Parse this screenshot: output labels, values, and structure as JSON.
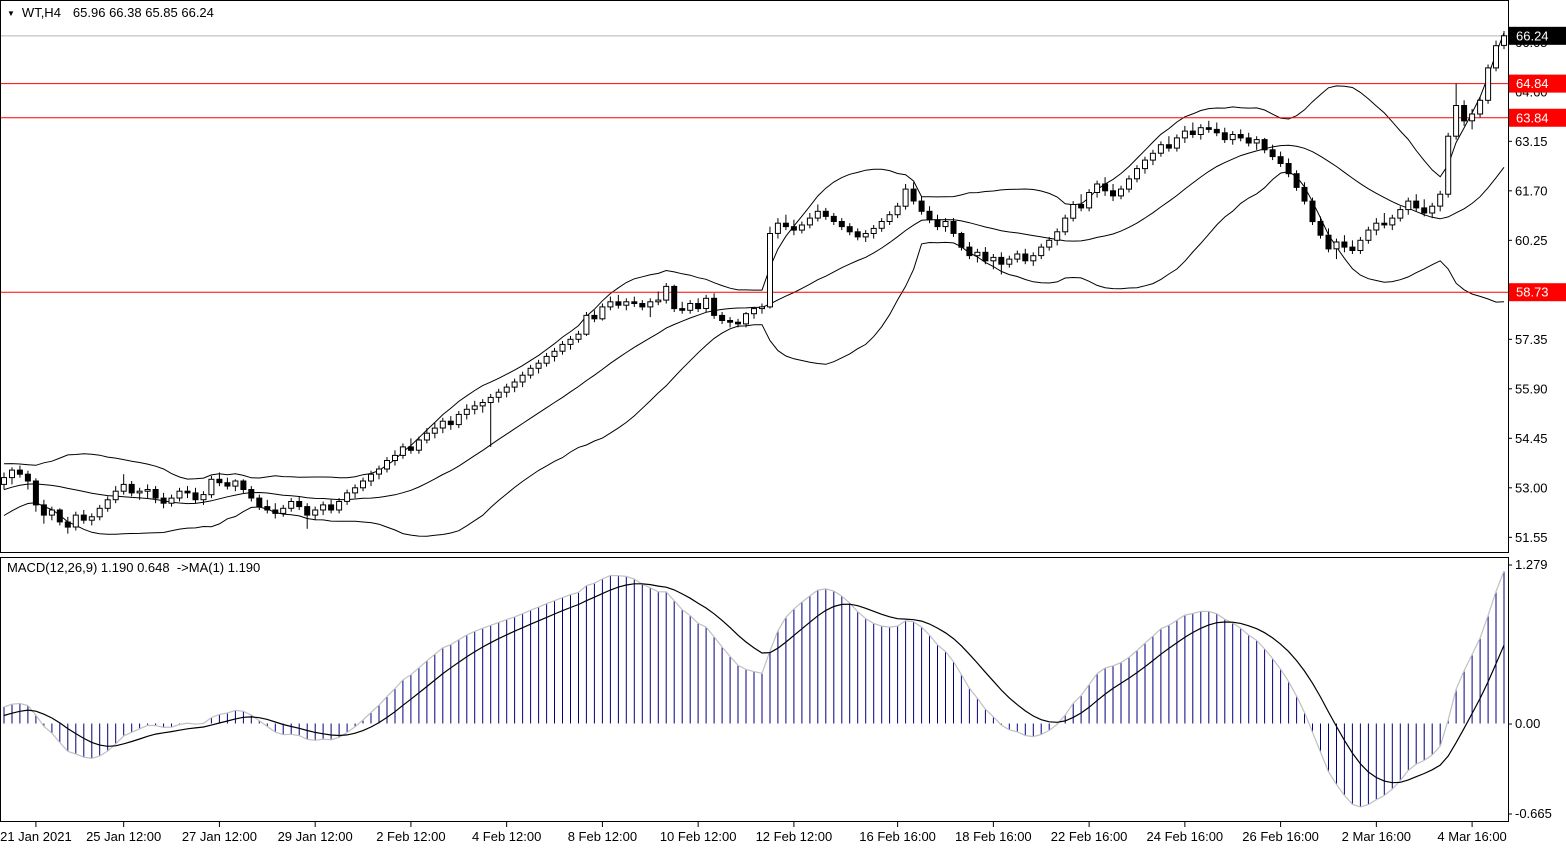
{
  "header": {
    "symbol": "WT,H4",
    "ohlc": "65.96 66.38 65.85 66.24"
  },
  "indicator_panel": {
    "label": "MACD(12,26,9) 1.190 0.648  ->MA(1) 1.190",
    "values": {
      "macd": "1.190",
      "signal": "0.648",
      "ma_label": "->MA(1)",
      "ma_value": "1.190"
    }
  },
  "chart_data": {
    "type": "candlestick",
    "symbol": "WT,H4",
    "timeframe": "H4",
    "title": "WT,H4 65.96 66.38 65.85 66.24",
    "current_bar": {
      "open": 65.96,
      "high": 66.38,
      "low": 65.85,
      "close": 66.24
    },
    "price_axis": {
      "min": 51.12,
      "max": 67.26,
      "ticks": [
        "66.05",
        "64.60",
        "63.15",
        "61.70",
        "60.25",
        "58.80",
        "57.35",
        "55.90",
        "54.45",
        "53.00",
        "51.55"
      ]
    },
    "time_axis": {
      "labels": [
        "21 Jan 2021",
        "25 Jan 12:00",
        "27 Jan 12:00",
        "29 Jan 12:00",
        "2 Feb 12:00",
        "4 Feb 12:00",
        "8 Feb 12:00",
        "10 Feb 12:00",
        "12 Feb 12:00",
        "16 Feb 16:00",
        "18 Feb 16:00",
        "22 Feb 16:00",
        "24 Feb 16:00",
        "26 Feb 16:00",
        "2 Mar 16:00",
        "4 Mar 16:00"
      ],
      "bar_index": [
        4,
        15,
        27,
        39,
        51,
        63,
        75,
        87,
        99,
        112,
        124,
        136,
        148,
        160,
        172,
        184
      ]
    },
    "horizontal_lines": [
      {
        "price": 64.84,
        "label": "64.84",
        "color": "#ff0000"
      },
      {
        "price": 63.84,
        "label": "63.84",
        "color": "#ff0000"
      },
      {
        "price": 58.73,
        "label": "58.73",
        "color": "#ff0000"
      }
    ],
    "current_price": {
      "value": 66.24,
      "label": "66.24",
      "line_color": "#b4b4b4",
      "badge_bg": "#000000"
    },
    "macd_axis_labels": {
      "max": "1.279",
      "zero": "0.00",
      "min": "-0.665"
    },
    "indicators": {
      "bollinger": {
        "period": 20,
        "deviation": 2
      },
      "macd": {
        "fast": 12,
        "slow": 26,
        "signal": 9
      }
    },
    "colors": {
      "bull": "#ffffff",
      "bear": "#000000",
      "outline": "#000000",
      "band": "#000000",
      "histogram": "#000080",
      "macd_main": "#c0c0c0",
      "macd_signal": "#000000",
      "level_red": "#ff0000",
      "frame": "#000000"
    },
    "warmup_closes": [
      53.8,
      53.9,
      54.0,
      54.1,
      54.0,
      53.9,
      53.8,
      53.6,
      53.4,
      53.2,
      53.0,
      52.8,
      52.6,
      52.4,
      52.2,
      52.0,
      51.9,
      52.0,
      52.1,
      52.3,
      52.2,
      52.1,
      52.3,
      52.5,
      52.4,
      52.6,
      52.8,
      52.7,
      52.9,
      53.1,
      53.0,
      53.2,
      53.1,
      53.3,
      53.2,
      53.4,
      53.3,
      53.2,
      53.3,
      53.25
    ],
    "candles": [
      [
        53.1,
        53.45,
        52.95,
        53.3
      ],
      [
        53.3,
        53.6,
        53.1,
        53.52
      ],
      [
        53.52,
        53.65,
        53.3,
        53.4
      ],
      [
        53.4,
        53.5,
        52.95,
        53.2
      ],
      [
        53.2,
        53.28,
        52.3,
        52.5
      ],
      [
        52.5,
        52.65,
        51.95,
        52.2
      ],
      [
        52.2,
        52.45,
        52.05,
        52.35
      ],
      [
        52.35,
        52.4,
        51.9,
        52.0
      ],
      [
        52.0,
        52.15,
        51.66,
        51.85
      ],
      [
        51.85,
        52.3,
        51.75,
        52.2
      ],
      [
        52.2,
        52.35,
        51.95,
        52.05
      ],
      [
        52.05,
        52.25,
        51.9,
        52.15
      ],
      [
        52.15,
        52.5,
        52.05,
        52.4
      ],
      [
        52.4,
        52.75,
        52.3,
        52.65
      ],
      [
        52.65,
        53.05,
        52.55,
        52.9
      ],
      [
        52.9,
        53.4,
        52.8,
        53.1
      ],
      [
        53.1,
        53.2,
        52.75,
        52.85
      ],
      [
        52.85,
        53.0,
        52.65,
        52.9
      ],
      [
        52.9,
        53.1,
        52.7,
        52.95
      ],
      [
        52.95,
        53.05,
        52.55,
        52.7
      ],
      [
        52.7,
        52.85,
        52.4,
        52.55
      ],
      [
        52.55,
        52.8,
        52.45,
        52.7
      ],
      [
        52.7,
        53.0,
        52.6,
        52.9
      ],
      [
        52.9,
        53.05,
        52.7,
        52.85
      ],
      [
        52.85,
        53.0,
        52.55,
        52.65
      ],
      [
        52.65,
        52.9,
        52.5,
        52.8
      ],
      [
        52.8,
        53.35,
        52.7,
        53.25
      ],
      [
        53.25,
        53.45,
        53.05,
        53.15
      ],
      [
        53.15,
        53.3,
        52.95,
        53.05
      ],
      [
        53.05,
        53.25,
        52.9,
        53.2
      ],
      [
        53.2,
        53.25,
        52.85,
        52.95
      ],
      [
        52.95,
        53.05,
        52.6,
        52.7
      ],
      [
        52.7,
        52.8,
        52.35,
        52.45
      ],
      [
        52.45,
        52.65,
        52.25,
        52.35
      ],
      [
        52.35,
        52.55,
        52.1,
        52.25
      ],
      [
        52.25,
        52.5,
        52.15,
        52.4
      ],
      [
        52.4,
        52.7,
        52.3,
        52.6
      ],
      [
        52.6,
        52.75,
        52.35,
        52.45
      ],
      [
        52.45,
        52.55,
        51.8,
        52.2
      ],
      [
        52.2,
        52.45,
        52.05,
        52.35
      ],
      [
        52.35,
        52.6,
        52.2,
        52.5
      ],
      [
        52.5,
        52.65,
        52.25,
        52.35
      ],
      [
        52.35,
        52.7,
        52.25,
        52.6
      ],
      [
        52.6,
        52.95,
        52.5,
        52.85
      ],
      [
        52.85,
        53.1,
        52.7,
        53.0
      ],
      [
        53.0,
        53.3,
        52.9,
        53.2
      ],
      [
        53.2,
        53.5,
        53.05,
        53.4
      ],
      [
        53.4,
        53.65,
        53.25,
        53.55
      ],
      [
        53.55,
        53.9,
        53.45,
        53.8
      ],
      [
        53.8,
        54.1,
        53.65,
        53.95
      ],
      [
        53.95,
        54.3,
        53.85,
        54.2
      ],
      [
        54.2,
        54.45,
        54.0,
        54.1
      ],
      [
        54.1,
        54.5,
        54.0,
        54.4
      ],
      [
        54.4,
        54.75,
        54.3,
        54.6
      ],
      [
        54.6,
        54.9,
        54.45,
        54.75
      ],
      [
        54.75,
        55.05,
        54.6,
        54.95
      ],
      [
        54.95,
        55.1,
        54.7,
        54.85
      ],
      [
        54.85,
        55.25,
        54.75,
        55.15
      ],
      [
        55.15,
        55.45,
        55.0,
        55.3
      ],
      [
        55.3,
        55.55,
        55.15,
        55.4
      ],
      [
        55.4,
        55.6,
        55.2,
        55.5
      ],
      [
        55.5,
        55.75,
        54.2,
        55.65
      ],
      [
        55.65,
        55.9,
        55.5,
        55.8
      ],
      [
        55.8,
        56.05,
        55.65,
        55.95
      ],
      [
        55.95,
        56.2,
        55.8,
        56.1
      ],
      [
        56.1,
        56.4,
        55.95,
        56.3
      ],
      [
        56.3,
        56.6,
        56.2,
        56.5
      ],
      [
        56.5,
        56.75,
        56.35,
        56.65
      ],
      [
        56.65,
        56.95,
        56.55,
        56.85
      ],
      [
        56.85,
        57.1,
        56.7,
        57.0
      ],
      [
        57.0,
        57.3,
        56.9,
        57.2
      ],
      [
        57.2,
        57.45,
        57.05,
        57.35
      ],
      [
        57.35,
        57.6,
        57.25,
        57.5
      ],
      [
        57.5,
        58.15,
        57.45,
        58.05
      ],
      [
        58.05,
        58.2,
        57.85,
        57.95
      ],
      [
        57.95,
        58.4,
        57.9,
        58.3
      ],
      [
        58.3,
        58.6,
        58.2,
        58.45
      ],
      [
        58.45,
        58.65,
        58.25,
        58.35
      ],
      [
        58.35,
        58.55,
        58.2,
        58.45
      ],
      [
        58.45,
        58.6,
        58.3,
        58.4
      ],
      [
        58.4,
        58.5,
        58.2,
        58.3
      ],
      [
        58.3,
        58.55,
        58.0,
        58.45
      ],
      [
        58.45,
        58.75,
        58.35,
        58.5
      ],
      [
        58.5,
        59.0,
        58.4,
        58.9
      ],
      [
        58.9,
        58.95,
        58.15,
        58.25
      ],
      [
        58.25,
        58.45,
        58.1,
        58.2
      ],
      [
        58.2,
        58.5,
        58.1,
        58.4
      ],
      [
        58.4,
        58.55,
        58.15,
        58.25
      ],
      [
        58.25,
        58.65,
        58.15,
        58.55
      ],
      [
        58.55,
        58.7,
        57.95,
        58.05
      ],
      [
        58.05,
        58.15,
        57.8,
        57.9
      ],
      [
        57.9,
        58.0,
        57.7,
        57.85
      ],
      [
        57.85,
        57.95,
        57.7,
        57.8
      ],
      [
        57.8,
        58.15,
        57.7,
        58.1
      ],
      [
        58.1,
        58.3,
        57.95,
        58.25
      ],
      [
        58.25,
        58.4,
        58.1,
        58.3
      ],
      [
        58.3,
        60.65,
        58.25,
        60.45
      ],
      [
        60.45,
        60.9,
        60.3,
        60.75
      ],
      [
        60.75,
        61.0,
        60.55,
        60.65
      ],
      [
        60.65,
        60.85,
        60.4,
        60.55
      ],
      [
        60.55,
        60.8,
        60.45,
        60.7
      ],
      [
        60.7,
        61.05,
        60.6,
        60.9
      ],
      [
        60.9,
        61.3,
        60.8,
        61.1
      ],
      [
        61.1,
        61.2,
        60.85,
        60.95
      ],
      [
        60.95,
        61.05,
        60.7,
        60.8
      ],
      [
        60.8,
        60.9,
        60.55,
        60.65
      ],
      [
        60.65,
        60.75,
        60.4,
        60.5
      ],
      [
        60.5,
        60.6,
        60.25,
        60.35
      ],
      [
        60.35,
        60.55,
        60.2,
        60.45
      ],
      [
        60.45,
        60.7,
        60.3,
        60.6
      ],
      [
        60.6,
        60.9,
        60.5,
        60.8
      ],
      [
        60.8,
        61.1,
        60.7,
        61.0
      ],
      [
        61.0,
        61.35,
        60.9,
        61.25
      ],
      [
        61.25,
        61.9,
        61.15,
        61.75
      ],
      [
        61.75,
        61.95,
        61.3,
        61.4
      ],
      [
        61.4,
        61.55,
        61.0,
        61.1
      ],
      [
        61.1,
        61.25,
        60.75,
        60.85
      ],
      [
        60.85,
        61.0,
        60.55,
        60.65
      ],
      [
        60.65,
        60.9,
        60.5,
        60.8
      ],
      [
        60.8,
        60.9,
        60.35,
        60.45
      ],
      [
        60.45,
        60.5,
        59.95,
        60.05
      ],
      [
        60.05,
        60.2,
        59.7,
        59.8
      ],
      [
        59.8,
        60.0,
        59.6,
        59.9
      ],
      [
        59.9,
        60.05,
        59.55,
        59.65
      ],
      [
        59.65,
        59.85,
        59.4,
        59.75
      ],
      [
        59.75,
        59.9,
        59.25,
        59.55
      ],
      [
        59.55,
        59.8,
        59.45,
        59.7
      ],
      [
        59.7,
        59.95,
        59.6,
        59.85
      ],
      [
        59.85,
        60.0,
        59.55,
        59.65
      ],
      [
        59.65,
        59.9,
        59.5,
        59.8
      ],
      [
        59.8,
        60.15,
        59.7,
        60.05
      ],
      [
        60.05,
        60.35,
        59.95,
        60.25
      ],
      [
        60.25,
        60.6,
        60.1,
        60.5
      ],
      [
        60.5,
        61.0,
        60.4,
        60.9
      ],
      [
        60.9,
        61.4,
        60.8,
        61.3
      ],
      [
        61.3,
        61.6,
        61.1,
        61.2
      ],
      [
        61.2,
        61.75,
        61.1,
        61.65
      ],
      [
        61.65,
        62.0,
        61.5,
        61.9
      ],
      [
        61.9,
        62.1,
        61.55,
        61.7
      ],
      [
        61.7,
        61.9,
        61.4,
        61.55
      ],
      [
        61.55,
        61.85,
        61.45,
        61.75
      ],
      [
        61.75,
        62.15,
        61.65,
        62.05
      ],
      [
        62.05,
        62.45,
        61.95,
        62.35
      ],
      [
        62.35,
        62.7,
        62.2,
        62.6
      ],
      [
        62.6,
        62.9,
        62.45,
        62.8
      ],
      [
        62.8,
        63.15,
        62.7,
        63.05
      ],
      [
        63.05,
        63.3,
        62.85,
        62.95
      ],
      [
        62.95,
        63.35,
        62.85,
        63.25
      ],
      [
        63.25,
        63.6,
        63.1,
        63.45
      ],
      [
        63.45,
        63.7,
        63.25,
        63.35
      ],
      [
        63.35,
        63.65,
        63.2,
        63.55
      ],
      [
        63.55,
        63.75,
        63.4,
        63.5
      ],
      [
        63.5,
        63.7,
        63.3,
        63.4
      ],
      [
        63.4,
        63.55,
        63.1,
        63.2
      ],
      [
        63.2,
        63.45,
        63.05,
        63.35
      ],
      [
        63.35,
        63.5,
        63.15,
        63.25
      ],
      [
        63.25,
        63.4,
        63.0,
        63.1
      ],
      [
        63.1,
        63.3,
        62.9,
        63.2
      ],
      [
        63.2,
        63.25,
        62.8,
        62.9
      ],
      [
        62.9,
        63.05,
        62.6,
        62.7
      ],
      [
        62.7,
        62.85,
        62.4,
        62.5
      ],
      [
        62.5,
        62.65,
        62.1,
        62.2
      ],
      [
        62.2,
        62.3,
        61.7,
        61.8
      ],
      [
        61.8,
        61.95,
        61.3,
        61.4
      ],
      [
        61.4,
        61.5,
        60.7,
        60.8
      ],
      [
        60.8,
        60.95,
        60.3,
        60.4
      ],
      [
        60.4,
        60.6,
        59.9,
        60.0
      ],
      [
        60.0,
        60.3,
        59.7,
        60.2
      ],
      [
        60.2,
        60.4,
        59.9,
        60.05
      ],
      [
        60.05,
        60.25,
        59.85,
        59.95
      ],
      [
        59.95,
        60.35,
        59.85,
        60.25
      ],
      [
        60.25,
        60.65,
        60.15,
        60.55
      ],
      [
        60.55,
        60.9,
        60.4,
        60.75
      ],
      [
        60.75,
        61.05,
        60.6,
        60.7
      ],
      [
        60.7,
        61.0,
        60.55,
        60.9
      ],
      [
        60.9,
        61.25,
        60.8,
        61.15
      ],
      [
        61.15,
        61.5,
        61.0,
        61.4
      ],
      [
        61.4,
        61.6,
        61.1,
        61.2
      ],
      [
        61.2,
        61.45,
        60.95,
        61.05
      ],
      [
        61.05,
        61.35,
        60.9,
        61.25
      ],
      [
        61.25,
        61.7,
        61.1,
        61.6
      ],
      [
        61.6,
        63.4,
        61.5,
        63.3
      ],
      [
        63.3,
        64.84,
        63.2,
        64.2
      ],
      [
        64.2,
        64.35,
        63.6,
        63.75
      ],
      [
        63.75,
        64.1,
        63.5,
        63.95
      ],
      [
        63.95,
        64.45,
        63.85,
        64.35
      ],
      [
        64.35,
        65.4,
        64.25,
        65.3
      ],
      [
        65.3,
        66.1,
        65.2,
        65.95
      ],
      [
        65.96,
        66.38,
        65.85,
        66.24
      ]
    ]
  }
}
